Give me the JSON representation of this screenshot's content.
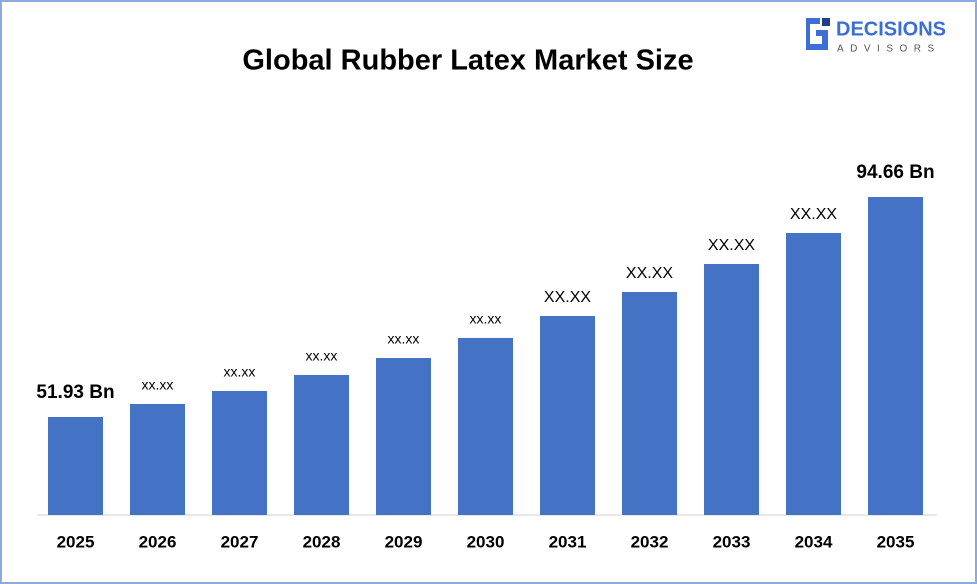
{
  "chart_data": {
    "type": "bar",
    "title": "Global Rubber Latex Market Size",
    "categories": [
      "2025",
      "2026",
      "2027",
      "2028",
      "2029",
      "2030",
      "2031",
      "2032",
      "2033",
      "2034",
      "2035"
    ],
    "values": [
      51.93,
      54.46,
      56.99,
      60.09,
      63.39,
      67.28,
      71.55,
      76.21,
      81.65,
      87.67,
      94.66
    ],
    "value_labels": [
      "51.93 Bn",
      "xx.xx",
      "xx.xx",
      "xx.xx",
      "xx.xx",
      "xx.xx",
      "XX.XX",
      "XX.XX",
      "XX.XX",
      "XX.XX",
      "94.66 Bn"
    ],
    "color": "#4472c4"
  },
  "logo": {
    "name": "DECISIONS",
    "tagline": "ADVISORS"
  }
}
